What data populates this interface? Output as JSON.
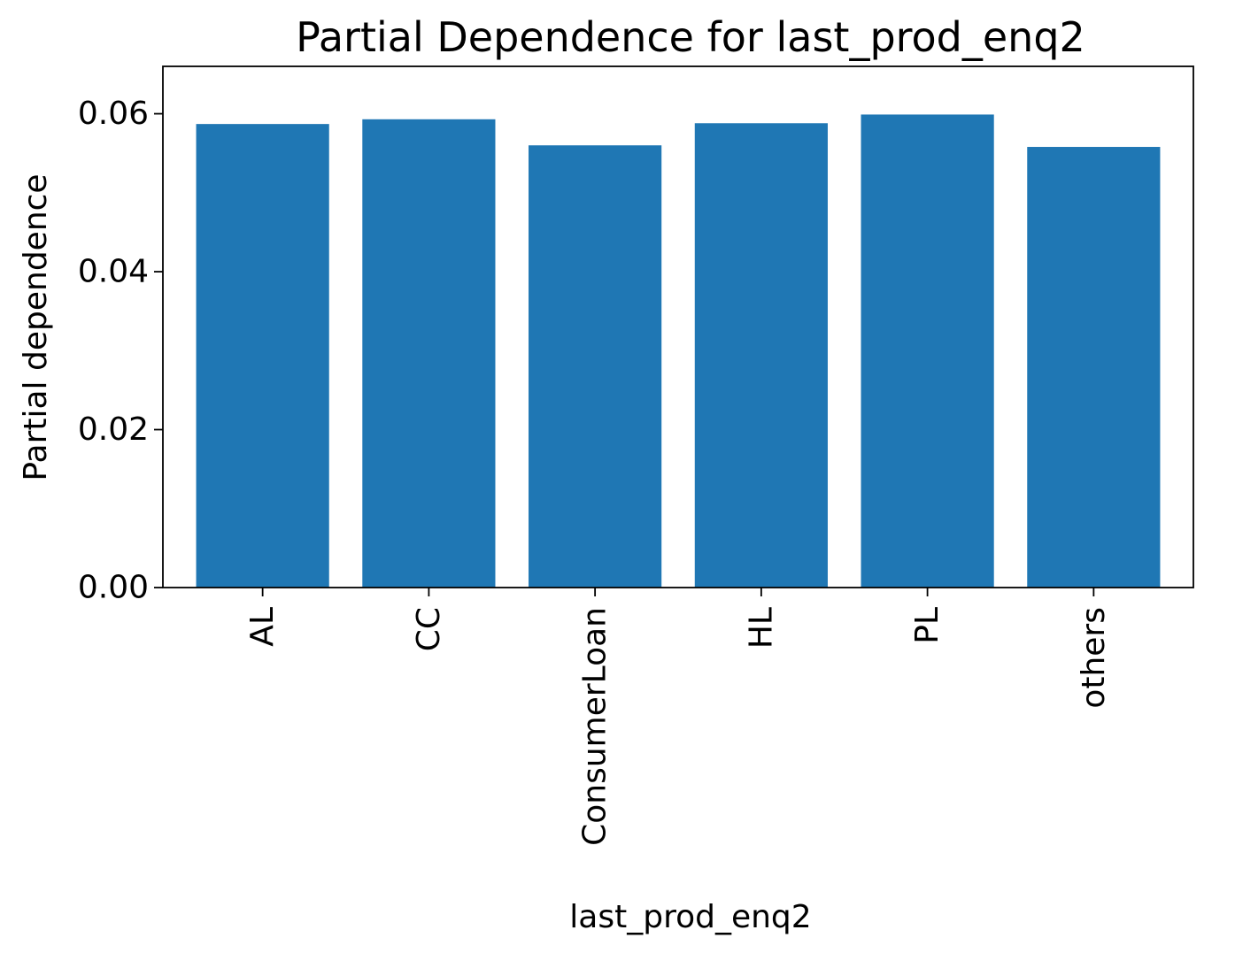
{
  "chart_data": {
    "type": "bar",
    "title": "Partial Dependence for last_prod_enq2",
    "xlabel": "last_prod_enq2",
    "ylabel": "Partial dependence",
    "categories": [
      "AL",
      "CC",
      "ConsumerLoan",
      "HL",
      "PL",
      "others"
    ],
    "values": [
      0.0587,
      0.0593,
      0.056,
      0.0588,
      0.0599,
      0.0558
    ],
    "ylim": [
      0,
      0.066
    ],
    "yticks": [
      0.0,
      0.02,
      0.04,
      0.06
    ],
    "ytick_labels": [
      "0.00",
      "0.02",
      "0.04",
      "0.06"
    ],
    "bar_color": "#1f77b4",
    "grid": false,
    "legend": false
  }
}
